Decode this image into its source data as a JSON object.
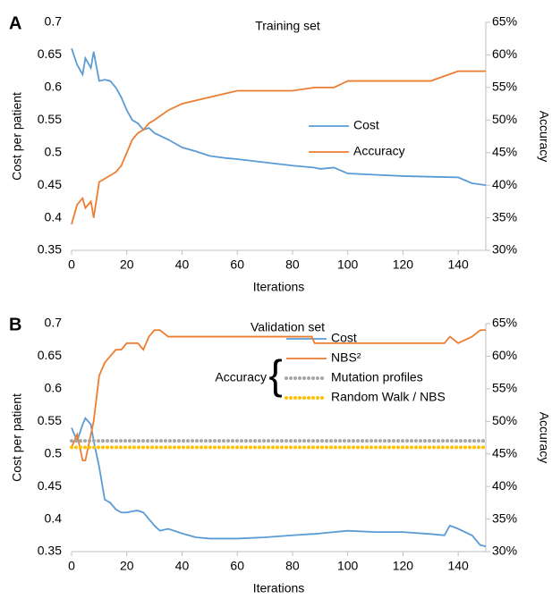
{
  "chart_data": [
    {
      "type": "line",
      "panel_label": "A",
      "title": "Training set",
      "x_label": "Iterations",
      "y_label": "Cost per patient",
      "y2_label": "Accuracy",
      "x": [
        0,
        2,
        4,
        5,
        7,
        8,
        10,
        12,
        14,
        16,
        18,
        20,
        22,
        24,
        26,
        28,
        30,
        35,
        40,
        45,
        50,
        55,
        60,
        70,
        80,
        88,
        90,
        95,
        100,
        110,
        120,
        130,
        140,
        145,
        150
      ],
      "series": [
        {
          "name": "Cost",
          "color": "#5b9bd5",
          "axis": "y",
          "values": [
            0.66,
            0.635,
            0.62,
            0.645,
            0.63,
            0.655,
            0.61,
            0.612,
            0.61,
            0.6,
            0.585,
            0.565,
            0.55,
            0.545,
            0.535,
            0.538,
            0.53,
            0.52,
            0.508,
            0.502,
            0.495,
            0.492,
            0.49,
            0.485,
            0.48,
            0.477,
            0.475,
            0.477,
            0.468,
            0.466,
            0.464,
            0.463,
            0.462,
            0.453,
            0.45
          ]
        },
        {
          "name": "Accuracy",
          "color": "#ed7d31",
          "axis": "y2",
          "values": [
            34,
            37,
            38,
            36.5,
            37.5,
            35,
            40.5,
            41,
            41.5,
            42,
            43,
            45,
            47,
            48,
            48.5,
            49.5,
            50,
            51.5,
            52.5,
            53,
            53.5,
            54,
            54.5,
            54.5,
            54.5,
            55,
            55,
            55,
            56,
            56,
            56,
            56,
            57.5,
            57.5,
            57.5
          ]
        }
      ],
      "xlim": [
        0,
        150
      ],
      "xticks": [
        0,
        20,
        40,
        60,
        80,
        100,
        120,
        140
      ],
      "ylim": [
        0.35,
        0.7
      ],
      "yticks": [
        0.35,
        0.4,
        0.45,
        0.5,
        0.55,
        0.6,
        0.65,
        0.7
      ],
      "y2lim": [
        30,
        65
      ],
      "y2ticks": [
        {
          "value": 30,
          "label": "30%"
        },
        {
          "value": 35,
          "label": "35%"
        },
        {
          "value": 40,
          "label": "40%"
        },
        {
          "value": 45,
          "label": "45%"
        },
        {
          "value": 50,
          "label": "50%"
        },
        {
          "value": 55,
          "label": "55%"
        },
        {
          "value": 60,
          "label": "60%"
        },
        {
          "value": 65,
          "label": "65%"
        }
      ]
    },
    {
      "type": "line",
      "panel_label": "B",
      "title": "Validation set",
      "x_label": "Iterations",
      "y_label": "Cost per patient",
      "y2_label": "Accuracy",
      "legend_group_label": "Accuracy",
      "x": [
        0,
        2,
        4,
        5,
        7,
        8,
        10,
        12,
        14,
        16,
        18,
        20,
        22,
        24,
        26,
        28,
        30,
        32,
        35,
        40,
        45,
        50,
        60,
        70,
        80,
        87,
        88,
        90,
        100,
        110,
        120,
        130,
        135,
        137,
        140,
        145,
        148,
        150
      ],
      "series": [
        {
          "name": "Cost",
          "color": "#5b9bd5",
          "axis": "y",
          "values": [
            0.54,
            0.52,
            0.545,
            0.555,
            0.545,
            0.52,
            0.48,
            0.43,
            0.425,
            0.415,
            0.41,
            0.41,
            0.412,
            0.413,
            0.41,
            0.4,
            0.39,
            0.382,
            0.385,
            0.378,
            0.372,
            0.37,
            0.37,
            0.372,
            0.375,
            0.377,
            0.377,
            0.378,
            0.382,
            0.38,
            0.38,
            0.377,
            0.375,
            0.39,
            0.385,
            0.375,
            0.36,
            0.358
          ]
        },
        {
          "name": "NBS²",
          "color": "#ed7d31",
          "axis": "y2",
          "values": [
            46,
            48,
            44,
            44,
            48,
            50,
            57,
            59,
            60,
            61,
            61,
            62,
            62,
            62,
            61,
            63,
            64,
            64,
            63,
            63,
            63,
            63,
            63,
            63,
            63,
            63,
            62,
            62,
            62,
            62,
            62,
            62,
            62,
            63,
            62,
            63,
            64,
            64
          ]
        },
        {
          "name": "Mutation profiles",
          "color": "#a5a5a5",
          "axis": "y2",
          "dotted": true,
          "values": [
            47,
            47,
            47,
            47,
            47,
            47,
            47,
            47,
            47,
            47,
            47,
            47,
            47,
            47,
            47,
            47,
            47,
            47,
            47,
            47,
            47,
            47,
            47,
            47,
            47,
            47,
            47,
            47,
            47,
            47,
            47,
            47,
            47,
            47,
            47,
            47,
            47,
            47
          ]
        },
        {
          "name": "Random Walk / NBS",
          "color": "#ffc000",
          "axis": "y2",
          "dotted": true,
          "values": [
            46,
            46,
            46,
            46,
            46,
            46,
            46,
            46,
            46,
            46,
            46,
            46,
            46,
            46,
            46,
            46,
            46,
            46,
            46,
            46,
            46,
            46,
            46,
            46,
            46,
            46,
            46,
            46,
            46,
            46,
            46,
            46,
            46,
            46,
            46,
            46,
            46,
            46
          ]
        }
      ],
      "xlim": [
        0,
        150
      ],
      "xticks": [
        0,
        20,
        40,
        60,
        80,
        100,
        120,
        140
      ],
      "ylim": [
        0.35,
        0.7
      ],
      "yticks": [
        0.35,
        0.4,
        0.45,
        0.5,
        0.55,
        0.6,
        0.65,
        0.7
      ],
      "y2lim": [
        30,
        65
      ],
      "y2ticks": [
        {
          "value": 30,
          "label": "30%"
        },
        {
          "value": 35,
          "label": "35%"
        },
        {
          "value": 40,
          "label": "40%"
        },
        {
          "value": 45,
          "label": "45%"
        },
        {
          "value": 50,
          "label": "50%"
        },
        {
          "value": 55,
          "label": "55%"
        },
        {
          "value": 60,
          "label": "60%"
        },
        {
          "value": 65,
          "label": "65%"
        }
      ]
    }
  ]
}
